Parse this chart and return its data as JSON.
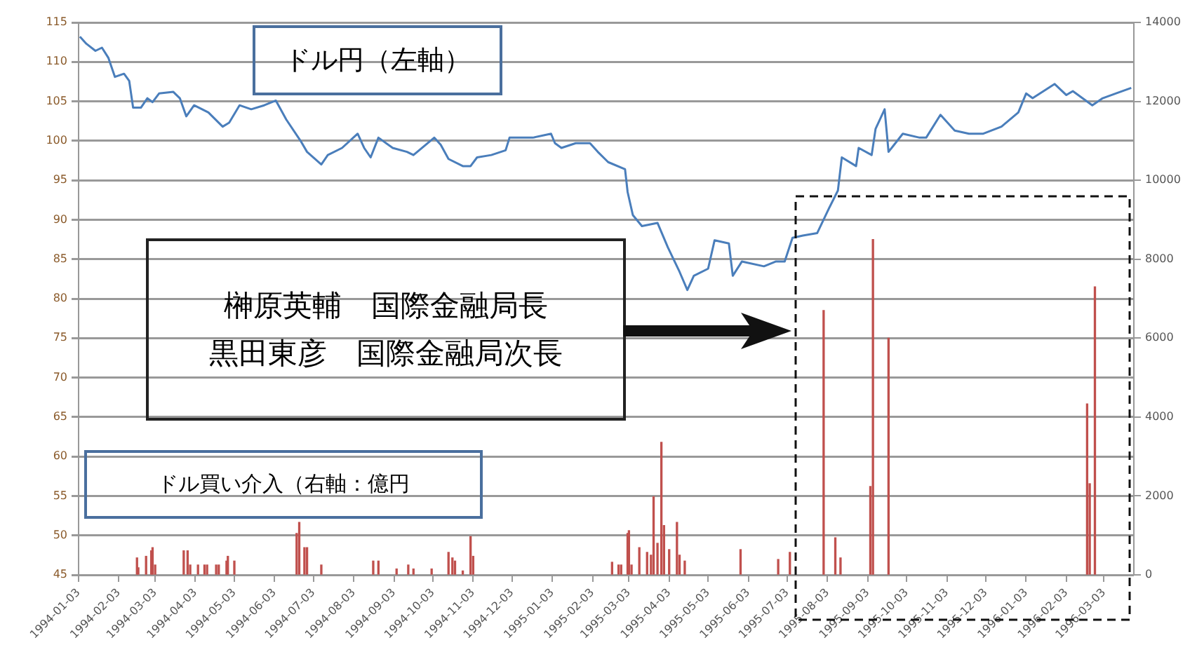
{
  "chart_data": {
    "type": "line",
    "grid": "y",
    "legend": false,
    "marker": "none",
    "line_style": "solid",
    "xlim": [
      "1994-01-03",
      "1996-03-26"
    ],
    "xticks": [
      "1994-01-03",
      "1994-02-03",
      "1994-03-03",
      "1994-04-03",
      "1994-05-03",
      "1994-06-03",
      "1994-07-03",
      "1994-08-03",
      "1994-09-03",
      "1994-10-03",
      "1994-11-03",
      "1994-12-03",
      "1995-01-03",
      "1995-02-03",
      "1995-03-03",
      "1995-04-03",
      "1995-05-03",
      "1995-06-03",
      "1995-07-03",
      "1995-08-03",
      "1995-09-03",
      "1995-10-03",
      "1995-11-03",
      "1995-12-03",
      "1996-01-03",
      "1996-02-03",
      "1996-03-03"
    ],
    "ylim": [
      45,
      115
    ],
    "yticks": [
      45,
      50,
      55,
      60,
      65,
      70,
      75,
      80,
      85,
      90,
      95,
      100,
      105,
      110,
      115
    ],
    "y2lim": [
      0,
      14000
    ],
    "y2ticks": [
      0,
      2000,
      4000,
      6000,
      8000,
      10000,
      12000,
      14000
    ],
    "annotations": [
      "榊原英輔　国際金融局長",
      "黒田東彦　国際金融局次長"
    ],
    "series": [
      {
        "name": "ドル円（左軸）",
        "color": "#4a7ebb",
        "x": [
          "1994-01-04",
          "1994-01-09",
          "1994-01-16",
          "1994-01-21",
          "1994-01-26",
          "1994-01-31",
          "1994-02-07",
          "1994-02-11",
          "1994-02-14",
          "1994-02-20",
          "1994-02-25",
          "1994-03-01",
          "1994-03-06",
          "1994-03-17",
          "1994-03-22",
          "1994-03-27",
          "1994-04-02",
          "1994-04-13",
          "1994-04-24",
          "1994-04-29",
          "1994-05-07",
          "1994-05-16",
          "1994-05-26",
          "1994-06-04",
          "1994-06-12",
          "1994-06-23",
          "1994-06-28",
          "1994-07-09",
          "1994-07-14",
          "1994-07-25",
          "1994-08-06",
          "1994-08-11",
          "1994-08-16",
          "1994-08-22",
          "1994-09-02",
          "1994-09-13",
          "1994-09-18",
          "1994-10-04",
          "1994-10-09",
          "1994-10-15",
          "1994-10-26",
          "1994-11-01",
          "1994-11-06",
          "1994-11-17",
          "1994-11-28",
          "1994-12-01",
          "1994-12-19",
          "1995-01-02",
          "1995-01-05",
          "1995-01-10",
          "1995-01-21",
          "1995-02-01",
          "1995-02-07",
          "1995-02-15",
          "1995-02-28",
          "1995-03-02",
          "1995-03-06",
          "1995-03-13",
          "1995-03-25",
          "1995-04-02",
          "1995-04-11",
          "1995-04-17",
          "1995-04-22",
          "1995-05-03",
          "1995-05-08",
          "1995-05-19",
          "1995-05-22",
          "1995-05-29",
          "1995-06-15",
          "1995-06-24",
          "1995-07-01",
          "1995-07-07",
          "1995-07-15",
          "1995-07-26",
          "1995-08-04",
          "1995-08-11",
          "1995-08-14",
          "1995-08-25",
          "1995-08-27",
          "1995-09-06",
          "1995-09-09",
          "1995-09-16",
          "1995-09-19",
          "1995-09-30",
          "1995-10-13",
          "1995-10-18",
          "1995-10-29",
          "1995-11-09",
          "1995-11-20",
          "1995-12-01",
          "1995-12-15",
          "1995-12-28",
          "1996-01-03",
          "1996-01-08",
          "1996-01-25",
          "1996-02-03",
          "1996-02-08",
          "1996-02-23",
          "1996-03-02",
          "1996-03-12",
          "1996-03-24"
        ],
        "values": [
          113.2,
          112.3,
          111.4,
          111.8,
          110.5,
          108.1,
          108.5,
          107.6,
          104.2,
          104.2,
          105.4,
          104.9,
          106.0,
          106.2,
          105.4,
          103.1,
          104.5,
          103.6,
          101.8,
          102.3,
          104.5,
          104.0,
          104.5,
          105.1,
          102.7,
          100.0,
          98.6,
          97.0,
          98.2,
          99.1,
          100.9,
          99.1,
          97.9,
          100.4,
          99.1,
          98.6,
          98.2,
          100.4,
          99.5,
          97.7,
          96.8,
          96.8,
          97.9,
          98.2,
          98.8,
          100.4,
          100.4,
          100.9,
          99.7,
          99.1,
          99.7,
          99.7,
          98.6,
          97.3,
          96.4,
          93.5,
          90.6,
          89.2,
          89.6,
          86.5,
          83.4,
          81.1,
          82.9,
          83.8,
          87.4,
          87.0,
          82.9,
          84.7,
          84.1,
          84.7,
          84.7,
          87.7,
          88.0,
          88.3,
          91.4,
          93.7,
          97.9,
          96.8,
          99.1,
          98.2,
          101.5,
          104.0,
          98.6,
          100.9,
          100.4,
          100.4,
          103.3,
          101.3,
          100.9,
          100.9,
          101.8,
          103.6,
          106.0,
          105.4,
          107.2,
          105.8,
          106.3,
          104.5,
          105.4,
          106.0,
          106.7
        ]
      },
      {
        "name": "ドル買い介入（右軸：億円",
        "type": "bar",
        "axis": "y2",
        "color": "#c0504d",
        "x": [
          "1994-02-17",
          "1994-02-18",
          "1994-02-24",
          "1994-02-28",
          "1994-03-01",
          "1994-03-03",
          "1994-03-25",
          "1994-03-28",
          "1994-03-30",
          "1994-04-05",
          "1994-04-10",
          "1994-04-12",
          "1994-04-19",
          "1994-04-21",
          "1994-04-27",
          "1994-04-28",
          "1994-05-03",
          "1994-06-20",
          "1994-06-22",
          "1994-06-26",
          "1994-06-28",
          "1994-07-09",
          "1994-08-18",
          "1994-08-22",
          "1994-09-05",
          "1994-09-14",
          "1994-09-18",
          "1994-10-02",
          "1994-10-15",
          "1994-10-18",
          "1994-10-20",
          "1994-10-26",
          "1994-11-01",
          "1994-11-03",
          "1995-02-18",
          "1995-02-23",
          "1995-02-25",
          "1995-03-02",
          "1995-03-03",
          "1995-03-05",
          "1995-03-11",
          "1995-03-17",
          "1995-03-20",
          "1995-03-22",
          "1995-03-25",
          "1995-03-28",
          "1995-03-30",
          "1995-04-03",
          "1995-04-09",
          "1995-04-11",
          "1995-04-15",
          "1995-05-28",
          "1995-06-26",
          "1995-07-05",
          "1995-07-31",
          "1995-08-09",
          "1995-08-13",
          "1995-09-05",
          "1995-09-07",
          "1995-09-19",
          "1996-02-19",
          "1996-02-21",
          "1996-02-25"
        ],
        "values": [
          430,
          180,
          470,
          610,
          690,
          250,
          610,
          610,
          250,
          250,
          250,
          250,
          250,
          250,
          350,
          470,
          350,
          1050,
          1330,
          690,
          690,
          250,
          350,
          350,
          150,
          250,
          150,
          150,
          570,
          430,
          350,
          100,
          970,
          470,
          320,
          250,
          250,
          1050,
          1120,
          250,
          690,
          570,
          500,
          1980,
          800,
          3360,
          1250,
          640,
          1330,
          500,
          350,
          640,
          390,
          570,
          6700,
          940,
          430,
          2240,
          8500,
          6000,
          4330,
          2310,
          7300
        ]
      }
    ]
  }
}
